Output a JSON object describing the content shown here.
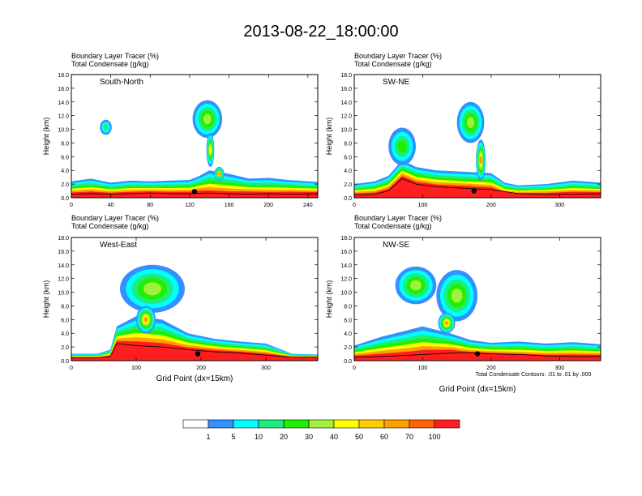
{
  "title": "2013-08-22_18:00:00",
  "panel_labels": {
    "left_line": "Boundary Layer Tracer   (%)",
    "right_line": "Total Condensate   (g/kg)"
  },
  "ylabel": "Height (km)",
  "xlabel": "Grid Point (dx=15km)",
  "contour_note": "Total Condensate Contours: .01 to .01 by .000",
  "colors": [
    "#ffffff",
    "#3390ff",
    "#00ffff",
    "#1eec80",
    "#1ef000",
    "#a0f03c",
    "#ffff00",
    "#ffcc00",
    "#ffa000",
    "#ff6400",
    "#ff1e1e"
  ],
  "colorbar": {
    "labels": [
      "1",
      "5",
      "10",
      "20",
      "30",
      "40",
      "50",
      "60",
      "70",
      "100"
    ]
  },
  "chart_data": [
    {
      "type": "heatmap",
      "name": "South-North",
      "title_left": "Boundary Layer Tracer   (%)",
      "title_right": "Total Condensate   (g/kg)",
      "xlim": [
        0,
        250
      ],
      "xticks": [
        "0",
        "40",
        "80",
        "120",
        "160",
        "200",
        "240"
      ],
      "xtickvals": [
        0,
        40,
        80,
        120,
        160,
        200,
        240
      ],
      "ylim": [
        0,
        18
      ],
      "yticks": [
        "0.0",
        "2.0",
        "4.0",
        "6.0",
        "8.0",
        "10.0",
        "12.0",
        "14.0",
        "16.0",
        "18.0"
      ],
      "xlabel": "",
      "ylabel": "Height (km)",
      "surface_x": [
        0,
        20,
        40,
        60,
        80,
        100,
        120,
        140,
        160,
        180,
        200,
        220,
        250
      ],
      "surface_y": [
        0.5,
        0.6,
        0.5,
        0.6,
        0.7,
        0.6,
        0.6,
        0.7,
        0.6,
        0.5,
        0.6,
        0.5,
        0.6
      ],
      "layer_top_x": [
        0,
        20,
        40,
        60,
        80,
        100,
        120,
        130,
        140,
        160,
        180,
        200,
        220,
        250
      ],
      "layer_top_y": [
        2.4,
        2.8,
        2.2,
        2.5,
        2.4,
        2.5,
        2.6,
        3.2,
        4.0,
        3.5,
        2.8,
        2.9,
        2.6,
        2.3
      ],
      "plumes": [
        {
          "x": 35,
          "y": 10.3,
          "w": 12,
          "h": 2.2,
          "level": 1
        },
        {
          "x": 138,
          "y": 11.5,
          "w": 30,
          "h": 5.5,
          "level": 3
        },
        {
          "x": 141,
          "y": 7.0,
          "w": 8,
          "h": 5.0,
          "level": 5
        },
        {
          "x": 150,
          "y": 3.5,
          "w": 10,
          "h": 2.0,
          "level": 8
        }
      ],
      "marker": {
        "x": 125,
        "y": 0.9
      }
    },
    {
      "type": "heatmap",
      "name": "SW-NE",
      "title_left": "Boundary Layer Tracer   (%)",
      "title_right": "Total Condensate   (g/kg)",
      "xlim": [
        0,
        360
      ],
      "xticks": [
        "0",
        "100",
        "200",
        "300"
      ],
      "xtickvals": [
        0,
        100,
        200,
        300
      ],
      "ylim": [
        0,
        18
      ],
      "yticks": [
        "0.0",
        "2.0",
        "4.0",
        "6.0",
        "8.0",
        "10.0",
        "12.0",
        "14.0",
        "16.0",
        "18.0"
      ],
      "xlabel": "",
      "ylabel": "Height (km)",
      "surface_x": [
        0,
        30,
        50,
        70,
        90,
        120,
        160,
        200,
        240,
        280,
        320,
        360
      ],
      "surface_y": [
        0.4,
        0.5,
        1.0,
        2.8,
        2.0,
        1.6,
        1.4,
        1.2,
        0.6,
        0.5,
        0.5,
        0.6
      ],
      "layer_top_x": [
        0,
        30,
        50,
        70,
        90,
        120,
        160,
        200,
        220,
        240,
        280,
        320,
        360
      ],
      "layer_top_y": [
        2.0,
        2.4,
        3.2,
        5.5,
        4.5,
        4.0,
        3.8,
        3.6,
        2.2,
        1.8,
        2.0,
        2.5,
        2.2
      ],
      "plumes": [
        {
          "x": 70,
          "y": 7.5,
          "w": 40,
          "h": 5.5,
          "level": 2
        },
        {
          "x": 170,
          "y": 11.0,
          "w": 40,
          "h": 6.0,
          "level": 3
        },
        {
          "x": 185,
          "y": 5.5,
          "w": 14,
          "h": 6.0,
          "level": 6
        }
      ],
      "marker": {
        "x": 175,
        "y": 1.0
      }
    },
    {
      "type": "heatmap",
      "name": "West-East",
      "title_left": "Boundary Layer Tracer   (%)",
      "title_right": "Total Condensate   (g/kg)",
      "xlim": [
        0,
        380
      ],
      "xticks": [
        "0",
        "100",
        "200",
        "300"
      ],
      "xtickvals": [
        0,
        100,
        200,
        300
      ],
      "ylim": [
        0,
        18
      ],
      "yticks": [
        "0.0",
        "2.0",
        "4.0",
        "6.0",
        "8.0",
        "10.0",
        "12.0",
        "14.0",
        "16.0",
        "18.0"
      ],
      "xlabel": "Grid Point (dx=15km)",
      "ylabel": "Height (km)",
      "surface_x": [
        0,
        40,
        60,
        70,
        100,
        140,
        180,
        220,
        260,
        300,
        340,
        380
      ],
      "surface_y": [
        0.4,
        0.4,
        0.6,
        2.5,
        2.2,
        2.0,
        1.6,
        1.3,
        1.1,
        0.8,
        0.5,
        0.5
      ],
      "layer_top_x": [
        0,
        40,
        60,
        70,
        100,
        140,
        180,
        220,
        260,
        300,
        340,
        380
      ],
      "layer_top_y": [
        1.0,
        1.0,
        1.6,
        5.0,
        6.5,
        6.0,
        4.0,
        3.2,
        2.8,
        2.5,
        1.0,
        0.9
      ],
      "plumes": [
        {
          "x": 125,
          "y": 10.5,
          "w": 100,
          "h": 7.0,
          "level": 3
        },
        {
          "x": 115,
          "y": 6.0,
          "w": 30,
          "h": 4.0,
          "level": 6
        }
      ],
      "marker": {
        "x": 195,
        "y": 1.0
      }
    },
    {
      "type": "heatmap",
      "name": "NW-SE",
      "title_left": "Boundary Layer Tracer   (%)",
      "title_right": "Total Condensate   (g/kg)",
      "xlim": [
        0,
        360
      ],
      "xticks": [
        "0",
        "100",
        "200",
        "300"
      ],
      "xtickvals": [
        0,
        100,
        200,
        300
      ],
      "ylim": [
        0,
        18
      ],
      "yticks": [
        "0.0",
        "2.0",
        "4.0",
        "6.0",
        "8.0",
        "10.0",
        "12.0",
        "14.0",
        "16.0",
        "18.0"
      ],
      "xlabel": "Grid Point (dx=15km)",
      "ylabel": "Height (km)",
      "surface_x": [
        0,
        40,
        80,
        120,
        160,
        200,
        240,
        280,
        320,
        360
      ],
      "surface_y": [
        0.5,
        0.6,
        0.8,
        1.0,
        1.2,
        1.0,
        0.9,
        0.7,
        0.6,
        0.6
      ],
      "layer_top_x": [
        0,
        40,
        80,
        100,
        140,
        170,
        200,
        240,
        280,
        320,
        360
      ],
      "layer_top_y": [
        2.2,
        3.5,
        4.5,
        5.0,
        4.0,
        3.0,
        2.6,
        2.8,
        2.5,
        2.7,
        2.4
      ],
      "plumes": [
        {
          "x": 90,
          "y": 11.0,
          "w": 60,
          "h": 5.5,
          "level": 3
        },
        {
          "x": 150,
          "y": 9.5,
          "w": 60,
          "h": 7.5,
          "level": 3
        },
        {
          "x": 135,
          "y": 5.5,
          "w": 25,
          "h": 3.0,
          "level": 6
        }
      ],
      "marker": {
        "x": 180,
        "y": 1.0
      }
    }
  ]
}
